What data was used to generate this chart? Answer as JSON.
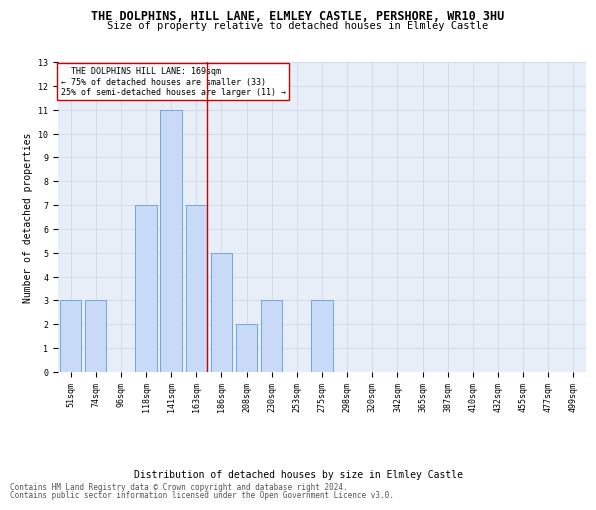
{
  "title": "THE DOLPHINS, HILL LANE, ELMLEY CASTLE, PERSHORE, WR10 3HU",
  "subtitle": "Size of property relative to detached houses in Elmley Castle",
  "xlabel": "Distribution of detached houses by size in Elmley Castle",
  "ylabel": "Number of detached properties",
  "footnote1": "Contains HM Land Registry data © Crown copyright and database right 2024.",
  "footnote2": "Contains public sector information licensed under the Open Government Licence v3.0.",
  "annotation_line1": "  THE DOLPHINS HILL LANE: 169sqm  ",
  "annotation_line2": "← 75% of detached houses are smaller (33)",
  "annotation_line3": "25% of semi-detached houses are larger (11) →",
  "bar_labels": [
    "51sqm",
    "74sqm",
    "96sqm",
    "118sqm",
    "141sqm",
    "163sqm",
    "186sqm",
    "208sqm",
    "230sqm",
    "253sqm",
    "275sqm",
    "298sqm",
    "320sqm",
    "342sqm",
    "365sqm",
    "387sqm",
    "410sqm",
    "432sqm",
    "455sqm",
    "477sqm",
    "499sqm"
  ],
  "bar_values": [
    3,
    3,
    0,
    7,
    11,
    7,
    5,
    2,
    3,
    0,
    3,
    0,
    0,
    0,
    0,
    0,
    0,
    0,
    0,
    0,
    0
  ],
  "bar_color": "#c9daf8",
  "bar_edge_color": "#6fa8dc",
  "marker_color": "#cc0000",
  "ylim": [
    0,
    13
  ],
  "yticks": [
    0,
    1,
    2,
    3,
    4,
    5,
    6,
    7,
    8,
    9,
    10,
    11,
    12,
    13
  ],
  "grid_color": "#d0d8e8",
  "bg_color": "#e8eef8",
  "title_fontsize": 8.5,
  "subtitle_fontsize": 7.5,
  "tick_fontsize": 6,
  "ylabel_fontsize": 7,
  "xlabel_fontsize": 7,
  "annot_fontsize": 6,
  "footnote_fontsize": 5.5
}
